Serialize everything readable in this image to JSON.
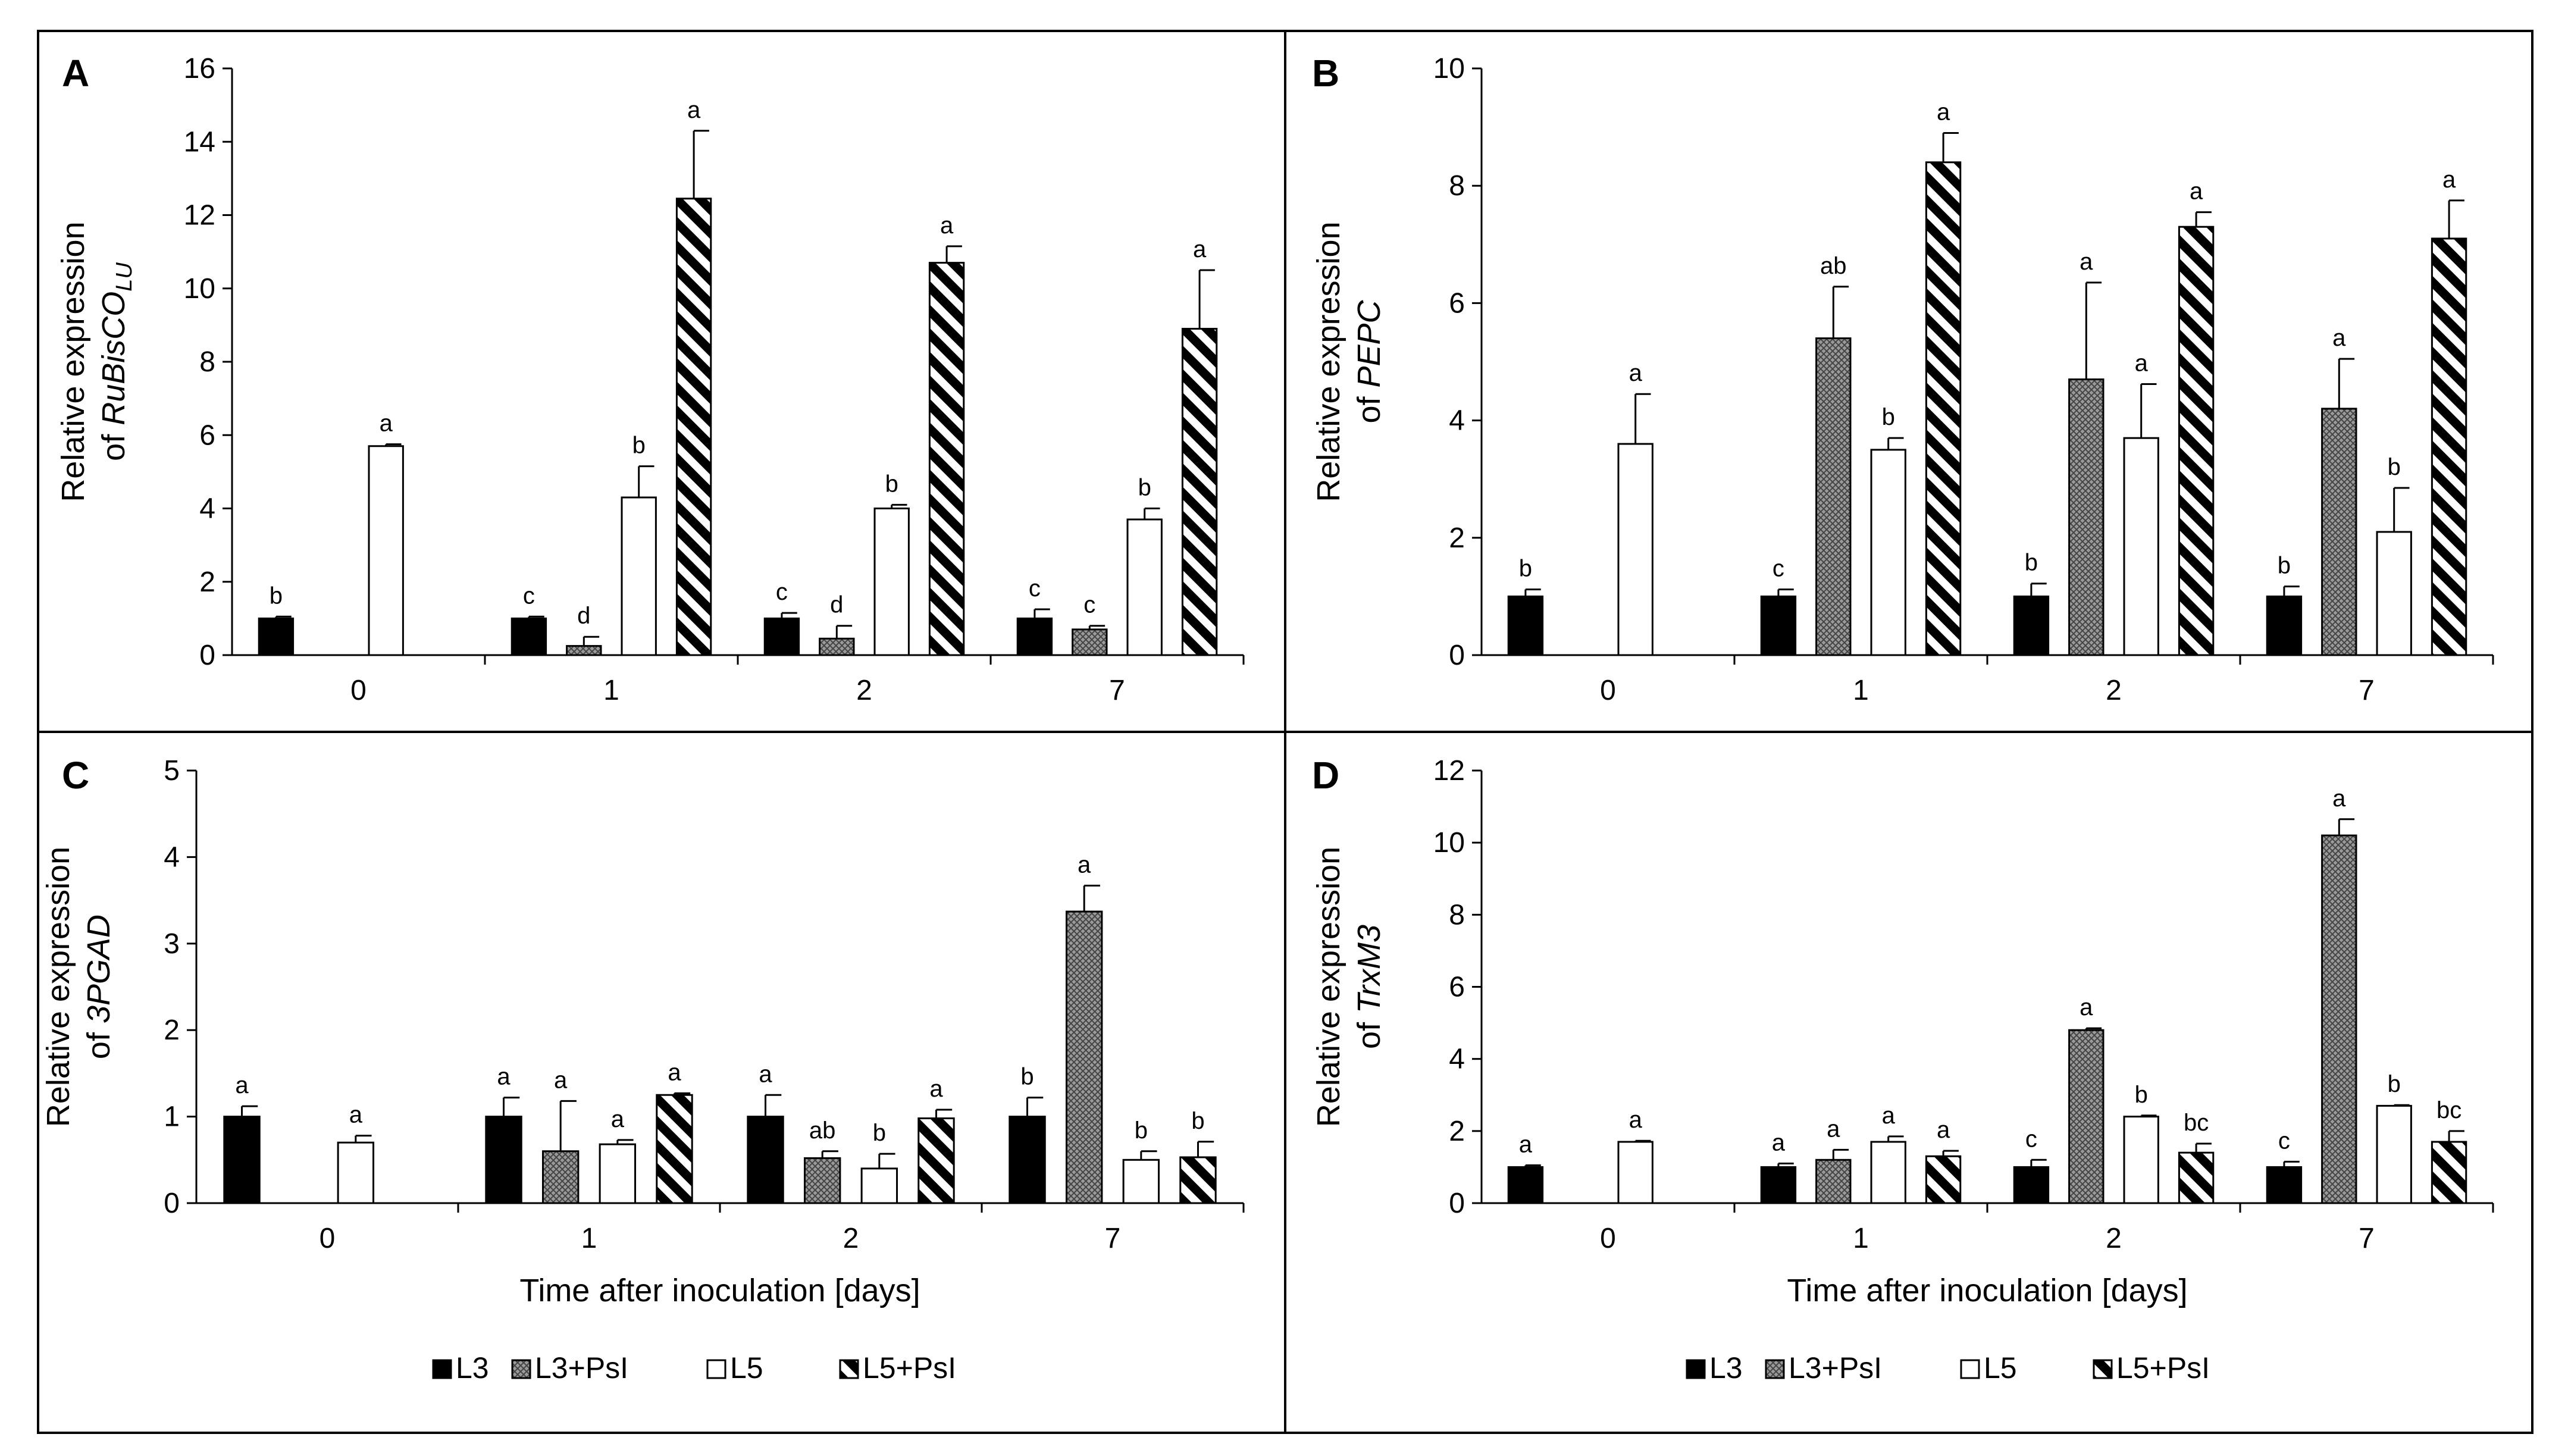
{
  "legend": {
    "entries": [
      {
        "name": "L3",
        "pattern": "solid-black"
      },
      {
        "name": "L3+PsI",
        "pattern": "crosshatch-gray"
      },
      {
        "name": "L5",
        "pattern": "white"
      },
      {
        "name": "L5+PsI",
        "pattern": "diagonal-stripes"
      }
    ]
  },
  "chart_data": [
    {
      "type": "bar",
      "panel": "A",
      "ylabel_line1": "Relative expression",
      "ylabel_line2_prefix": "of ",
      "gene": "RuBisCO",
      "gene_sub": "LU",
      "xlabel": "",
      "categories": [
        "0",
        "1",
        "2",
        "7"
      ],
      "ylim": [
        0,
        16
      ],
      "yticks": [
        0,
        2,
        4,
        6,
        8,
        10,
        12,
        14,
        16
      ],
      "series": [
        {
          "name": "L3",
          "values": [
            1.0,
            1.0,
            1.0,
            1.0
          ],
          "errors": [
            0.05,
            0.05,
            0.15,
            0.25
          ],
          "labels": [
            "b",
            "c",
            "c",
            "c"
          ]
        },
        {
          "name": "L3+PsI",
          "values": [
            null,
            0.25,
            0.45,
            0.7
          ],
          "errors": [
            null,
            0.25,
            0.35,
            0.1
          ],
          "labels": [
            "",
            "d",
            "d",
            "c"
          ]
        },
        {
          "name": "L5",
          "values": [
            5.7,
            4.3,
            4.0,
            3.7
          ],
          "errors": [
            0.05,
            0.85,
            0.1,
            0.3
          ],
          "labels": [
            "a",
            "b",
            "b",
            "b"
          ]
        },
        {
          "name": "L5+PsI",
          "values": [
            null,
            12.45,
            10.7,
            8.9
          ],
          "errors": [
            null,
            1.85,
            0.45,
            1.6
          ],
          "labels": [
            "",
            "a",
            "a",
            "a"
          ]
        }
      ]
    },
    {
      "type": "bar",
      "panel": "B",
      "ylabel_line1": "Relative expression",
      "ylabel_line2_prefix": "of ",
      "gene": "PEPC",
      "gene_sub": "",
      "xlabel": "",
      "categories": [
        "0",
        "1",
        "2",
        "7"
      ],
      "ylim": [
        0,
        10
      ],
      "yticks": [
        0,
        2,
        4,
        6,
        8,
        10
      ],
      "series": [
        {
          "name": "L3",
          "values": [
            1.0,
            1.0,
            1.0,
            1.0
          ],
          "errors": [
            0.12,
            0.12,
            0.22,
            0.17
          ],
          "labels": [
            "b",
            "c",
            "b",
            "b"
          ]
        },
        {
          "name": "L3+PsI",
          "values": [
            null,
            5.4,
            4.7,
            4.2
          ],
          "errors": [
            null,
            0.88,
            1.65,
            0.85
          ],
          "labels": [
            "",
            "ab",
            "a",
            "a"
          ]
        },
        {
          "name": "L5",
          "values": [
            3.6,
            3.5,
            3.7,
            2.1
          ],
          "errors": [
            0.85,
            0.2,
            0.92,
            0.75
          ],
          "labels": [
            "a",
            "b",
            "a",
            "b"
          ]
        },
        {
          "name": "L5+PsI",
          "values": [
            null,
            8.4,
            7.3,
            7.1
          ],
          "errors": [
            null,
            0.5,
            0.25,
            0.65
          ],
          "labels": [
            "",
            "a",
            "a",
            "a"
          ]
        }
      ]
    },
    {
      "type": "bar",
      "panel": "C",
      "ylabel_line1": "Relative expression",
      "ylabel_line2_prefix": "of ",
      "gene": "3PGAD",
      "gene_sub": "",
      "xlabel": "Time after inoculation [days]",
      "categories": [
        "0",
        "1",
        "2",
        "7"
      ],
      "ylim": [
        0,
        5
      ],
      "yticks": [
        0,
        1,
        2,
        3,
        4,
        5
      ],
      "series": [
        {
          "name": "L3",
          "values": [
            1.0,
            1.0,
            1.0,
            1.0
          ],
          "errors": [
            0.12,
            0.22,
            0.25,
            0.22
          ],
          "labels": [
            "a",
            "a",
            "a",
            "b"
          ]
        },
        {
          "name": "L3+PsI",
          "values": [
            null,
            0.6,
            0.52,
            3.37
          ],
          "errors": [
            null,
            0.58,
            0.08,
            0.3
          ],
          "labels": [
            "",
            "a",
            "ab",
            "a"
          ]
        },
        {
          "name": "L5",
          "values": [
            0.7,
            0.68,
            0.4,
            0.5
          ],
          "errors": [
            0.08,
            0.05,
            0.17,
            0.1
          ],
          "labels": [
            "a",
            "a",
            "b",
            "b"
          ]
        },
        {
          "name": "L5+PsI",
          "values": [
            null,
            1.25,
            0.98,
            0.53
          ],
          "errors": [
            null,
            0.02,
            0.1,
            0.18
          ],
          "labels": [
            "",
            "a",
            "a",
            "b"
          ]
        }
      ]
    },
    {
      "type": "bar",
      "panel": "D",
      "ylabel_line1": "Relative expression",
      "ylabel_line2_prefix": "of ",
      "gene": "TrxM3",
      "gene_sub": "",
      "xlabel": "Time after inoculation [days]",
      "categories": [
        "0",
        "1",
        "2",
        "7"
      ],
      "ylim": [
        0,
        12
      ],
      "yticks": [
        0,
        2,
        4,
        6,
        8,
        10,
        12
      ],
      "series": [
        {
          "name": "L3",
          "values": [
            1.0,
            1.0,
            1.0,
            1.0
          ],
          "errors": [
            0.05,
            0.1,
            0.2,
            0.15
          ],
          "labels": [
            "a",
            "a",
            "c",
            "c"
          ]
        },
        {
          "name": "L3+PsI",
          "values": [
            null,
            1.2,
            4.8,
            10.2
          ],
          "errors": [
            null,
            0.28,
            0.05,
            0.45
          ],
          "labels": [
            "",
            "a",
            "a",
            "a"
          ]
        },
        {
          "name": "L5",
          "values": [
            1.7,
            1.7,
            2.4,
            2.7
          ],
          "errors": [
            0.03,
            0.15,
            0.03,
            0.02
          ],
          "labels": [
            "a",
            "a",
            "b",
            "b"
          ]
        },
        {
          "name": "L5+PsI",
          "values": [
            null,
            1.3,
            1.4,
            1.7
          ],
          "errors": [
            null,
            0.15,
            0.25,
            0.3
          ],
          "labels": [
            "",
            "a",
            "bc",
            "bc"
          ]
        }
      ]
    }
  ]
}
